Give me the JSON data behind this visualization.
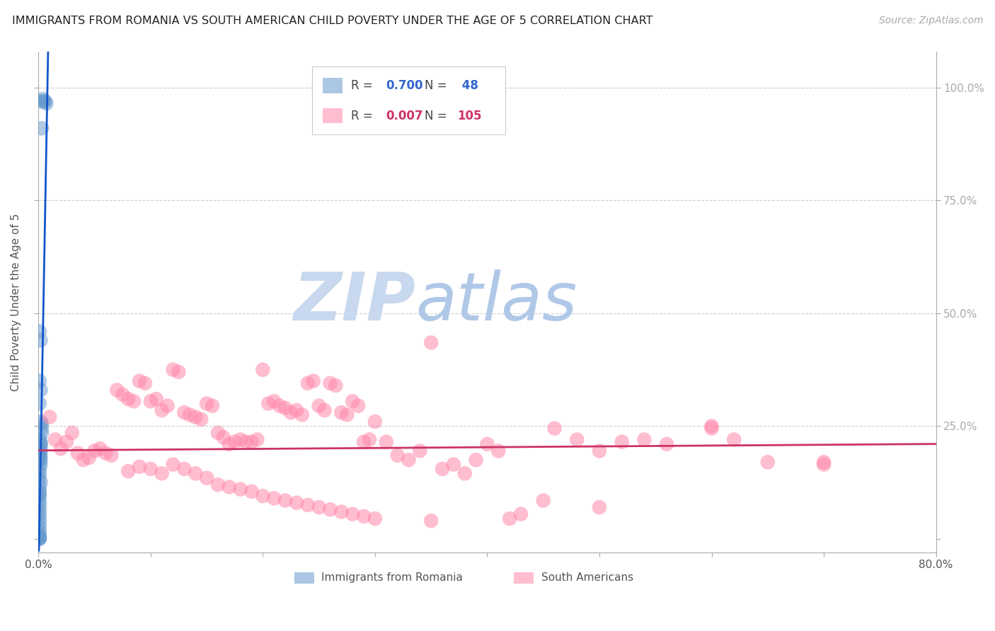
{
  "title": "IMMIGRANTS FROM ROMANIA VS SOUTH AMERICAN CHILD POVERTY UNDER THE AGE OF 5 CORRELATION CHART",
  "source": "Source: ZipAtlas.com",
  "ylabel": "Child Poverty Under the Age of 5",
  "xlim": [
    0,
    0.8
  ],
  "ylim": [
    -0.03,
    1.08
  ],
  "romania_color": "#6699cc",
  "south_american_color": "#ff88aa",
  "trend_romania_color": "#1155cc",
  "trend_sa_color": "#cc3366",
  "romania_R": 0.7,
  "romania_N": 48,
  "south_american_R": 0.007,
  "south_american_N": 105,
  "legend_label_1": "Immigrants from Romania",
  "legend_label_2": "South Americans",
  "watermark_zip": "ZIP",
  "watermark_atlas": "atlas",
  "background_color": "#ffffff",
  "romania_scatter_x": [
    0.002,
    0.004,
    0.005,
    0.006,
    0.007,
    0.003,
    0.001,
    0.002,
    0.001,
    0.002,
    0.001,
    0.002,
    0.003,
    0.003,
    0.003,
    0.001,
    0.002,
    0.002,
    0.002,
    0.002,
    0.002,
    0.001,
    0.002,
    0.002,
    0.001,
    0.001,
    0.001,
    0.002,
    0.001,
    0.001,
    0.001,
    0.001,
    0.001,
    0.001,
    0.001,
    0.001,
    0.001,
    0.001,
    0.001,
    0.001,
    0.001,
    0.001,
    0.001,
    0.001,
    0.001,
    0.001,
    0.001,
    0.001
  ],
  "romania_scatter_y": [
    0.97,
    0.975,
    0.97,
    0.97,
    0.965,
    0.91,
    0.46,
    0.44,
    0.35,
    0.33,
    0.3,
    0.26,
    0.255,
    0.245,
    0.235,
    0.22,
    0.215,
    0.21,
    0.205,
    0.195,
    0.185,
    0.18,
    0.175,
    0.165,
    0.155,
    0.145,
    0.135,
    0.125,
    0.115,
    0.105,
    0.1,
    0.095,
    0.085,
    0.075,
    0.065,
    0.055,
    0.045,
    0.035,
    0.025,
    0.015,
    0.008,
    0.004,
    0.002,
    0.001,
    0.0,
    0.195,
    0.185,
    0.175
  ],
  "south_american_scatter_x": [
    0.01,
    0.015,
    0.02,
    0.025,
    0.03,
    0.035,
    0.04,
    0.045,
    0.05,
    0.055,
    0.06,
    0.065,
    0.07,
    0.075,
    0.08,
    0.085,
    0.09,
    0.095,
    0.1,
    0.105,
    0.11,
    0.115,
    0.12,
    0.125,
    0.13,
    0.135,
    0.14,
    0.145,
    0.15,
    0.155,
    0.16,
    0.165,
    0.17,
    0.175,
    0.18,
    0.185,
    0.19,
    0.195,
    0.2,
    0.205,
    0.21,
    0.215,
    0.22,
    0.225,
    0.23,
    0.235,
    0.24,
    0.245,
    0.25,
    0.255,
    0.26,
    0.265,
    0.27,
    0.275,
    0.28,
    0.285,
    0.29,
    0.295,
    0.3,
    0.31,
    0.32,
    0.33,
    0.34,
    0.35,
    0.36,
    0.37,
    0.38,
    0.39,
    0.4,
    0.41,
    0.42,
    0.43,
    0.45,
    0.46,
    0.48,
    0.5,
    0.5,
    0.52,
    0.54,
    0.56,
    0.6,
    0.6,
    0.62,
    0.65,
    0.7,
    0.7,
    0.08,
    0.09,
    0.1,
    0.11,
    0.12,
    0.13,
    0.14,
    0.15,
    0.16,
    0.17,
    0.18,
    0.19,
    0.2,
    0.21,
    0.22,
    0.23,
    0.24,
    0.25,
    0.26,
    0.27,
    0.28,
    0.29,
    0.3,
    0.35
  ],
  "south_american_scatter_y": [
    0.27,
    0.22,
    0.2,
    0.215,
    0.235,
    0.19,
    0.175,
    0.18,
    0.195,
    0.2,
    0.19,
    0.185,
    0.33,
    0.32,
    0.31,
    0.305,
    0.35,
    0.345,
    0.305,
    0.31,
    0.285,
    0.295,
    0.375,
    0.37,
    0.28,
    0.275,
    0.27,
    0.265,
    0.3,
    0.295,
    0.235,
    0.225,
    0.21,
    0.215,
    0.22,
    0.215,
    0.215,
    0.22,
    0.375,
    0.3,
    0.305,
    0.295,
    0.29,
    0.28,
    0.285,
    0.275,
    0.345,
    0.35,
    0.295,
    0.285,
    0.345,
    0.34,
    0.28,
    0.275,
    0.305,
    0.295,
    0.215,
    0.22,
    0.26,
    0.215,
    0.185,
    0.175,
    0.195,
    0.435,
    0.155,
    0.165,
    0.145,
    0.175,
    0.21,
    0.195,
    0.045,
    0.055,
    0.085,
    0.245,
    0.22,
    0.07,
    0.195,
    0.215,
    0.22,
    0.21,
    0.245,
    0.25,
    0.22,
    0.17,
    0.165,
    0.17,
    0.15,
    0.16,
    0.155,
    0.145,
    0.165,
    0.155,
    0.145,
    0.135,
    0.12,
    0.115,
    0.11,
    0.105,
    0.095,
    0.09,
    0.085,
    0.08,
    0.075,
    0.07,
    0.065,
    0.06,
    0.055,
    0.05,
    0.045,
    0.04
  ],
  "romania_trend_slope": 120.0,
  "romania_trend_intercept": -0.05,
  "sa_trend_slope": 0.02,
  "sa_trend_intercept": 0.195
}
